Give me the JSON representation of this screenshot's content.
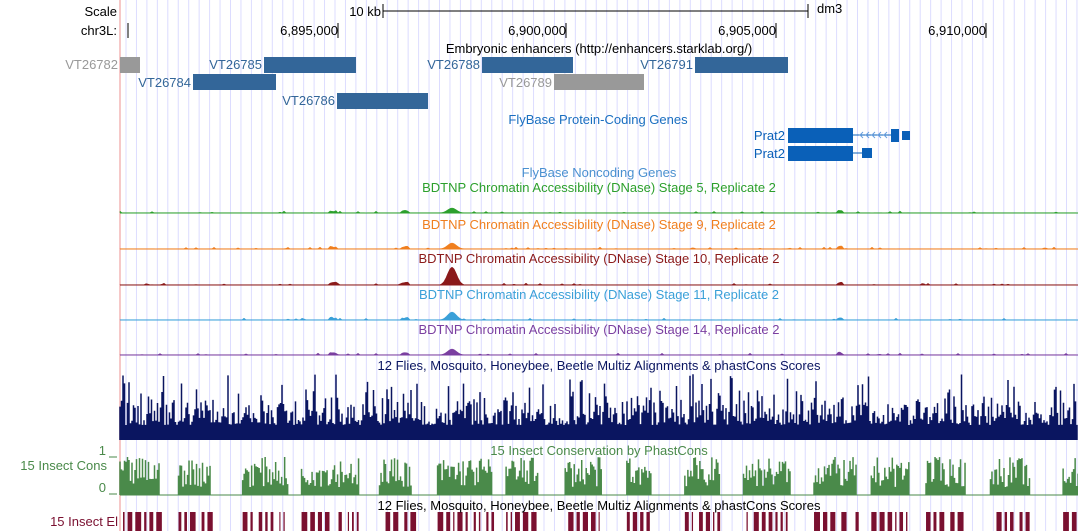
{
  "ruler": {
    "scale_label": "Scale",
    "scale_bar_label": "10 kb",
    "assembly": "dm3",
    "chrom_label": "chr3L:",
    "ticks": [
      "6,895,000",
      "6,900,000",
      "6,905,000",
      "6,910,000"
    ]
  },
  "enhancers": {
    "title": "Embryonic enhancers (http://enhancers.starklab.org/)",
    "items": [
      {
        "name": "VT26782",
        "status": "grey"
      },
      {
        "name": "VT26785",
        "status": "blue"
      },
      {
        "name": "VT26788",
        "status": "blue"
      },
      {
        "name": "VT26791",
        "status": "blue"
      },
      {
        "name": "VT26784",
        "status": "blue"
      },
      {
        "name": "VT26789",
        "status": "grey"
      },
      {
        "name": "VT26786",
        "status": "blue"
      }
    ]
  },
  "protein_genes": {
    "title": "FlyBase Protein-Coding Genes",
    "items": [
      {
        "name": "Prat2"
      },
      {
        "name": "Prat2"
      }
    ]
  },
  "noncoding_genes": {
    "title": "FlyBase Noncoding Genes"
  },
  "dnase_tracks": [
    {
      "title": "BDTNP Chromatin Accessibility (DNase) Stage 5, Replicate 2",
      "color": "#2ca02c"
    },
    {
      "title": "BDTNP Chromatin Accessibility (DNase) Stage 9, Replicate 2",
      "color": "#f07f1e"
    },
    {
      "title": "BDTNP Chromatin Accessibility (DNase) Stage 10, Replicate 2",
      "color": "#8b1a1a"
    },
    {
      "title": "BDTNP Chromatin Accessibility (DNase) Stage 11, Replicate 2",
      "color": "#3aa0d8"
    },
    {
      "title": "BDTNP Chromatin Accessibility (DNase) Stage 14, Replicate 2",
      "color": "#7b3fa0"
    }
  ],
  "multiz": {
    "title": "12 Flies, Mosquito, Honeybee, Beetle Multiz Alignments & phastCons Scores",
    "color": "#0a1560"
  },
  "phastcons": {
    "title": "15 Insect Conservation by PhastCons",
    "side_label": "15 Insect Cons",
    "y_max": "1",
    "y_min": "0",
    "color": "#4a8a4a"
  },
  "multiz2": {
    "title": "12 Flies, Mosquito, Honeybee, Beetle Multiz Alignments & phastCons Scores"
  },
  "elements": {
    "side_label": "15 Insect El",
    "color": "#7a1030"
  },
  "colors": {
    "enhancer_blue": "#336699",
    "enhancer_grey": "#999999",
    "gene_blue": "#0a60b8",
    "grid": "#dcdcff"
  }
}
